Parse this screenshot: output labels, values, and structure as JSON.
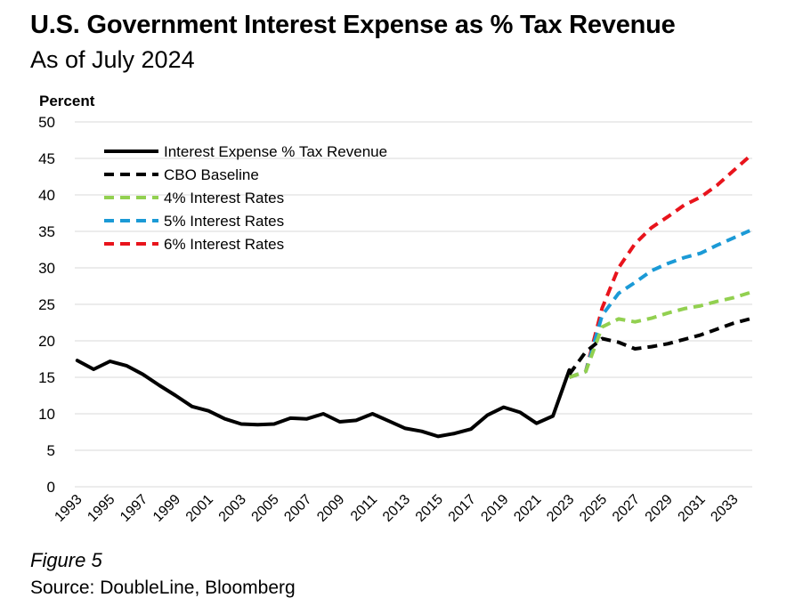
{
  "header": {
    "title": "U.S. Government Interest Expense as % Tax Revenue",
    "subtitle": "As of July 2024"
  },
  "footer": {
    "figure_label": "Figure 5",
    "source": "Source: DoubleLine, Bloomberg"
  },
  "chart_data": {
    "type": "line",
    "title": "U.S. Government Interest Expense as % Tax Revenue",
    "subtitle": "As of July 2024",
    "ylabel": "Percent",
    "xlabel": "",
    "ylim": [
      0,
      50
    ],
    "xlim": [
      1993,
      2034
    ],
    "yticks": [
      0,
      5,
      10,
      15,
      20,
      25,
      30,
      35,
      40,
      45,
      50
    ],
    "xticks": [
      "1993",
      "1995",
      "1997",
      "1999",
      "2001",
      "2003",
      "2005",
      "2007",
      "2009",
      "2011",
      "2013",
      "2015",
      "2017",
      "2019",
      "2021",
      "2023",
      "2025",
      "2027",
      "2029",
      "2031",
      "2033"
    ],
    "grid": "horizontal",
    "legend_position": "top-left",
    "series": [
      {
        "name": "Interest Expense % Tax Revenue",
        "color": "#000000",
        "style": "solid",
        "x": [
          1993,
          1994,
          1995,
          1996,
          1997,
          1998,
          1999,
          2000,
          2001,
          2002,
          2003,
          2004,
          2005,
          2006,
          2007,
          2008,
          2009,
          2010,
          2011,
          2012,
          2013,
          2014,
          2015,
          2016,
          2017,
          2018,
          2019,
          2020,
          2021,
          2022,
          2023
        ],
        "values": [
          17.3,
          16.1,
          17.2,
          16.6,
          15.4,
          13.9,
          12.5,
          11.0,
          10.4,
          9.3,
          8.6,
          8.5,
          8.6,
          9.4,
          9.3,
          10.0,
          8.9,
          9.1,
          10.0,
          9.0,
          8.0,
          7.6,
          6.9,
          7.3,
          7.9,
          9.8,
          10.9,
          10.2,
          8.7,
          9.7,
          16.0
        ]
      },
      {
        "name": "CBO Baseline",
        "color": "#000000",
        "style": "dashed",
        "x": [
          2023,
          2024,
          2025,
          2026,
          2027,
          2028,
          2029,
          2030,
          2031,
          2032,
          2033,
          2034
        ],
        "values": [
          15.4,
          18.5,
          20.3,
          19.8,
          18.9,
          19.2,
          19.6,
          20.2,
          20.8,
          21.6,
          22.4,
          23.0
        ]
      },
      {
        "name": "4% Interest Rates",
        "color": "#92D050",
        "style": "dashed",
        "x": [
          2023,
          2024,
          2025,
          2026,
          2027,
          2028,
          2029,
          2030,
          2031,
          2032,
          2033,
          2034
        ],
        "values": [
          15.0,
          15.8,
          21.9,
          23.0,
          22.6,
          23.1,
          23.8,
          24.4,
          24.8,
          25.4,
          25.9,
          26.6
        ]
      },
      {
        "name": "5% Interest Rates",
        "color": "#1B9AD6",
        "style": "dashed",
        "x": [
          2023,
          2024,
          2025,
          2026,
          2027,
          2028,
          2029,
          2030,
          2031,
          2032,
          2033,
          2034
        ],
        "values": [
          15.0,
          15.8,
          23.5,
          26.5,
          28.0,
          29.6,
          30.6,
          31.4,
          32.0,
          33.1,
          34.1,
          35.1
        ]
      },
      {
        "name": "6% Interest Rates",
        "color": "#E8141C",
        "style": "dashed",
        "x": [
          2023,
          2024,
          2025,
          2026,
          2027,
          2028,
          2029,
          2030,
          2031,
          2032,
          2033,
          2034
        ],
        "values": [
          15.0,
          15.8,
          24.5,
          30.0,
          33.3,
          35.5,
          37.0,
          38.6,
          39.7,
          41.3,
          43.3,
          45.3
        ]
      }
    ]
  }
}
